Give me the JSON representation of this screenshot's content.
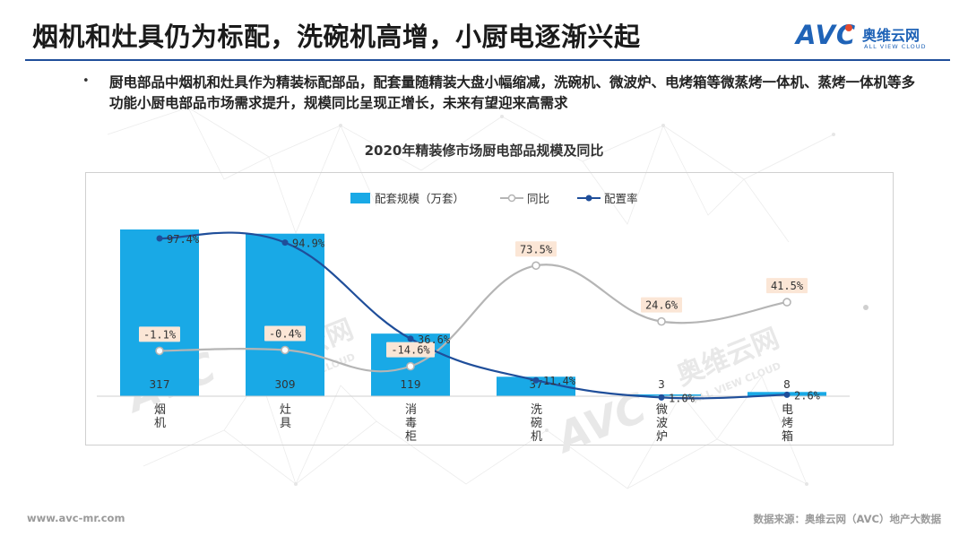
{
  "header": {
    "title": "烟机和灶具仍为标配，洗碗机高增，小厨电逐渐兴起",
    "logo_mark": "AVC",
    "logo_cn": "奥维云网",
    "logo_en": "ALL VIEW CLOUD"
  },
  "summary": {
    "bullet": "•",
    "text": "厨电部品中烟机和灶具作为精装标配部品，配套量随精装大盘小幅缩减，洗碗机、微波炉、电烤箱等微蒸烤一体机、蒸烤一体机等多功能小厨电部品市场需求提升，规模同比呈现正增长，未来有望迎来高需求"
  },
  "chart_data": {
    "type": "bar",
    "title": "2020年精装修市场厨电部品规模及同比",
    "categories": [
      "烟机",
      "灶具",
      "消毒柜",
      "洗碗机",
      "微波炉",
      "电烤箱"
    ],
    "series": [
      {
        "name": "配套规模（万套）",
        "kind": "bar",
        "values": [
          317,
          309,
          119,
          37,
          3,
          8
        ],
        "color": "#19a9e6"
      },
      {
        "name": "同比",
        "kind": "line",
        "unit": "%",
        "values": [
          -1.1,
          -0.4,
          -14.6,
          73.5,
          24.6,
          41.5
        ],
        "color": "#b5b5b5"
      },
      {
        "name": "配置率",
        "kind": "line",
        "unit": "%",
        "values": [
          97.4,
          94.9,
          36.6,
          11.4,
          1.0,
          2.6
        ],
        "color": "#1f4e9a"
      }
    ],
    "data_labels": {
      "bar": [
        "317",
        "309",
        "119",
        "37",
        "3",
        "8"
      ],
      "yoy": [
        "-1.1%",
        "-0.4%",
        "-14.6%",
        "73.5%",
        "24.6%",
        "41.5%"
      ],
      "rate": [
        "97.4%",
        "94.9%",
        "36.6%",
        "11.4%",
        "1.0%",
        "2.6%"
      ]
    },
    "legend_position": "top-center",
    "grid": false
  },
  "watermark": {
    "mark": "AVC",
    "cn": "奥维云网",
    "en": "ALL VIEW CLOUD"
  },
  "footer": {
    "website": "www.avc-mr.com",
    "source": "数据来源：奥维云网（AVC）地产大数据"
  }
}
